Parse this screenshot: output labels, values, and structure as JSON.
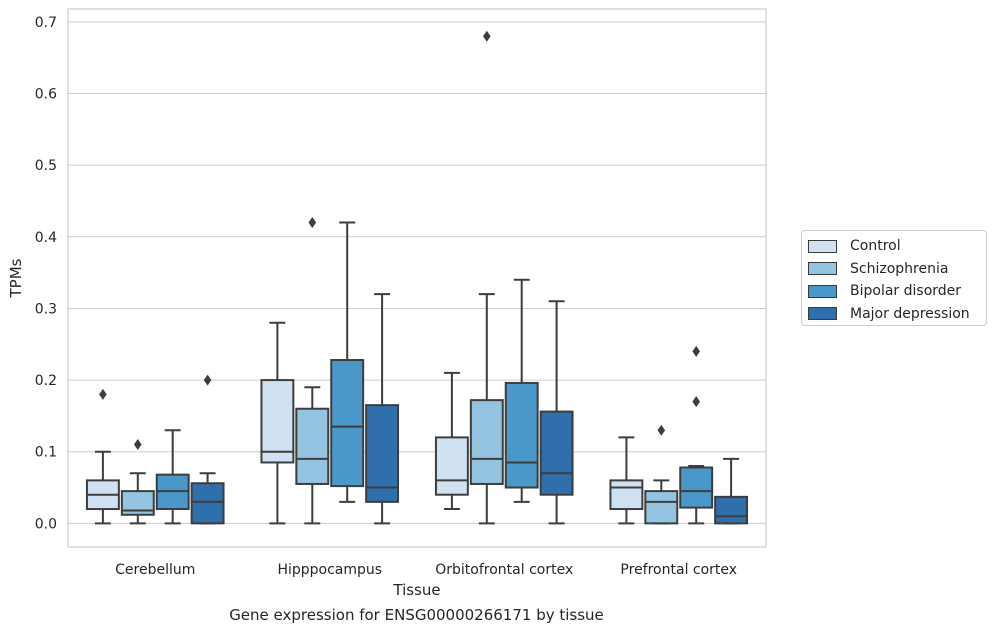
{
  "caption": "Gene expression for ENSG00000266171 by tissue",
  "chart_data": {
    "type": "box",
    "title": "",
    "xlabel": "Tissue",
    "ylabel": "TPMs",
    "ylim": [
      -0.033,
      0.718
    ],
    "yticks": [
      "0.0",
      "0.1",
      "0.2",
      "0.3",
      "0.4",
      "0.5",
      "0.6",
      "0.7"
    ],
    "grid": "horizontal",
    "legend_position": "right, outside plot",
    "categories": [
      "Cerebellum",
      "Hipppocampus",
      "Orbitofrontal cortex",
      "Prefrontal cortex"
    ],
    "series": [
      {
        "name": "Control",
        "color": "#d0e1f2",
        "boxes": [
          {
            "min": 0.0,
            "q1": 0.02,
            "median": 0.04,
            "q3": 0.06,
            "max": 0.1,
            "outliers": [
              0.18
            ]
          },
          {
            "min": 0.0,
            "q1": 0.085,
            "median": 0.1,
            "q3": 0.2,
            "max": 0.28,
            "outliers": []
          },
          {
            "min": 0.02,
            "q1": 0.04,
            "median": 0.06,
            "q3": 0.12,
            "max": 0.21,
            "outliers": []
          },
          {
            "min": 0.0,
            "q1": 0.02,
            "median": 0.05,
            "q3": 0.06,
            "max": 0.12,
            "outliers": []
          }
        ]
      },
      {
        "name": "Schizophrenia",
        "color": "#94c4df",
        "boxes": [
          {
            "min": 0.0,
            "q1": 0.012,
            "median": 0.018,
            "q3": 0.045,
            "max": 0.07,
            "outliers": [
              0.11
            ]
          },
          {
            "min": 0.0,
            "q1": 0.055,
            "median": 0.09,
            "q3": 0.16,
            "max": 0.19,
            "outliers": [
              0.42
            ]
          },
          {
            "min": 0.0,
            "q1": 0.055,
            "median": 0.09,
            "q3": 0.172,
            "max": 0.32,
            "outliers": [
              0.68
            ]
          },
          {
            "min": 0.0,
            "q1": 0.0,
            "median": 0.03,
            "q3": 0.045,
            "max": 0.06,
            "outliers": [
              0.13
            ]
          }
        ]
      },
      {
        "name": "Bipolar disorder",
        "color": "#4a98c9",
        "boxes": [
          {
            "min": 0.0,
            "q1": 0.02,
            "median": 0.045,
            "q3": 0.068,
            "max": 0.13,
            "outliers": []
          },
          {
            "min": 0.03,
            "q1": 0.052,
            "median": 0.135,
            "q3": 0.228,
            "max": 0.42,
            "outliers": []
          },
          {
            "min": 0.03,
            "q1": 0.05,
            "median": 0.085,
            "q3": 0.196,
            "max": 0.34,
            "outliers": []
          },
          {
            "min": 0.0,
            "q1": 0.022,
            "median": 0.045,
            "q3": 0.078,
            "max": 0.08,
            "outliers": [
              0.17,
              0.24
            ]
          }
        ]
      },
      {
        "name": "Major depression",
        "color": "#2e6fac",
        "boxes": [
          {
            "min": 0.0,
            "q1": 0.0,
            "median": 0.03,
            "q3": 0.056,
            "max": 0.07,
            "outliers": [
              0.2
            ]
          },
          {
            "min": 0.0,
            "q1": 0.03,
            "median": 0.05,
            "q3": 0.165,
            "max": 0.32,
            "outliers": []
          },
          {
            "min": 0.0,
            "q1": 0.04,
            "median": 0.07,
            "q3": 0.156,
            "max": 0.31,
            "outliers": []
          },
          {
            "min": 0.0,
            "q1": 0.0,
            "median": 0.01,
            "q3": 0.037,
            "max": 0.09,
            "outliers": []
          }
        ]
      }
    ]
  }
}
